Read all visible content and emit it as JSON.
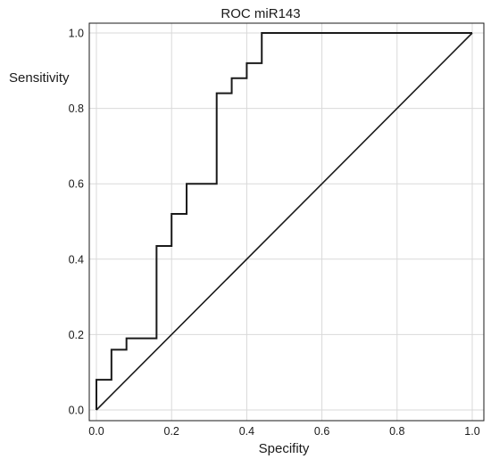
{
  "chart_data": {
    "type": "line",
    "title": "ROC miR143",
    "xlabel": "Specifity",
    "ylabel": "Sensitivity",
    "xlim": [
      0.0,
      1.0
    ],
    "ylim": [
      0.0,
      1.0
    ],
    "xticks": [
      "0.0",
      "0.2",
      "0.4",
      "0.6",
      "0.8",
      "1.0"
    ],
    "yticks": [
      "0.0",
      "0.2",
      "0.4",
      "0.6",
      "0.8",
      "1.0"
    ],
    "grid": true,
    "legend": "none",
    "series": [
      {
        "style": "step",
        "color": "#1a1a1a",
        "x": [
          0.0,
          0.0,
          0.04,
          0.04,
          0.08,
          0.08,
          0.16,
          0.16,
          0.2,
          0.2,
          0.24,
          0.24,
          0.32,
          0.32,
          0.36,
          0.36,
          0.4,
          0.4,
          0.44,
          0.44,
          1.0
        ],
        "y": [
          0.0,
          0.08,
          0.08,
          0.16,
          0.16,
          0.19,
          0.19,
          0.435,
          0.435,
          0.52,
          0.52,
          0.6,
          0.6,
          0.84,
          0.84,
          0.88,
          0.88,
          0.92,
          0.92,
          1.0,
          1.0
        ]
      },
      {
        "style": "diagonal",
        "color": "#1a1a1a",
        "x": [
          0.0,
          1.0
        ],
        "y": [
          0.0,
          1.0
        ]
      }
    ]
  }
}
